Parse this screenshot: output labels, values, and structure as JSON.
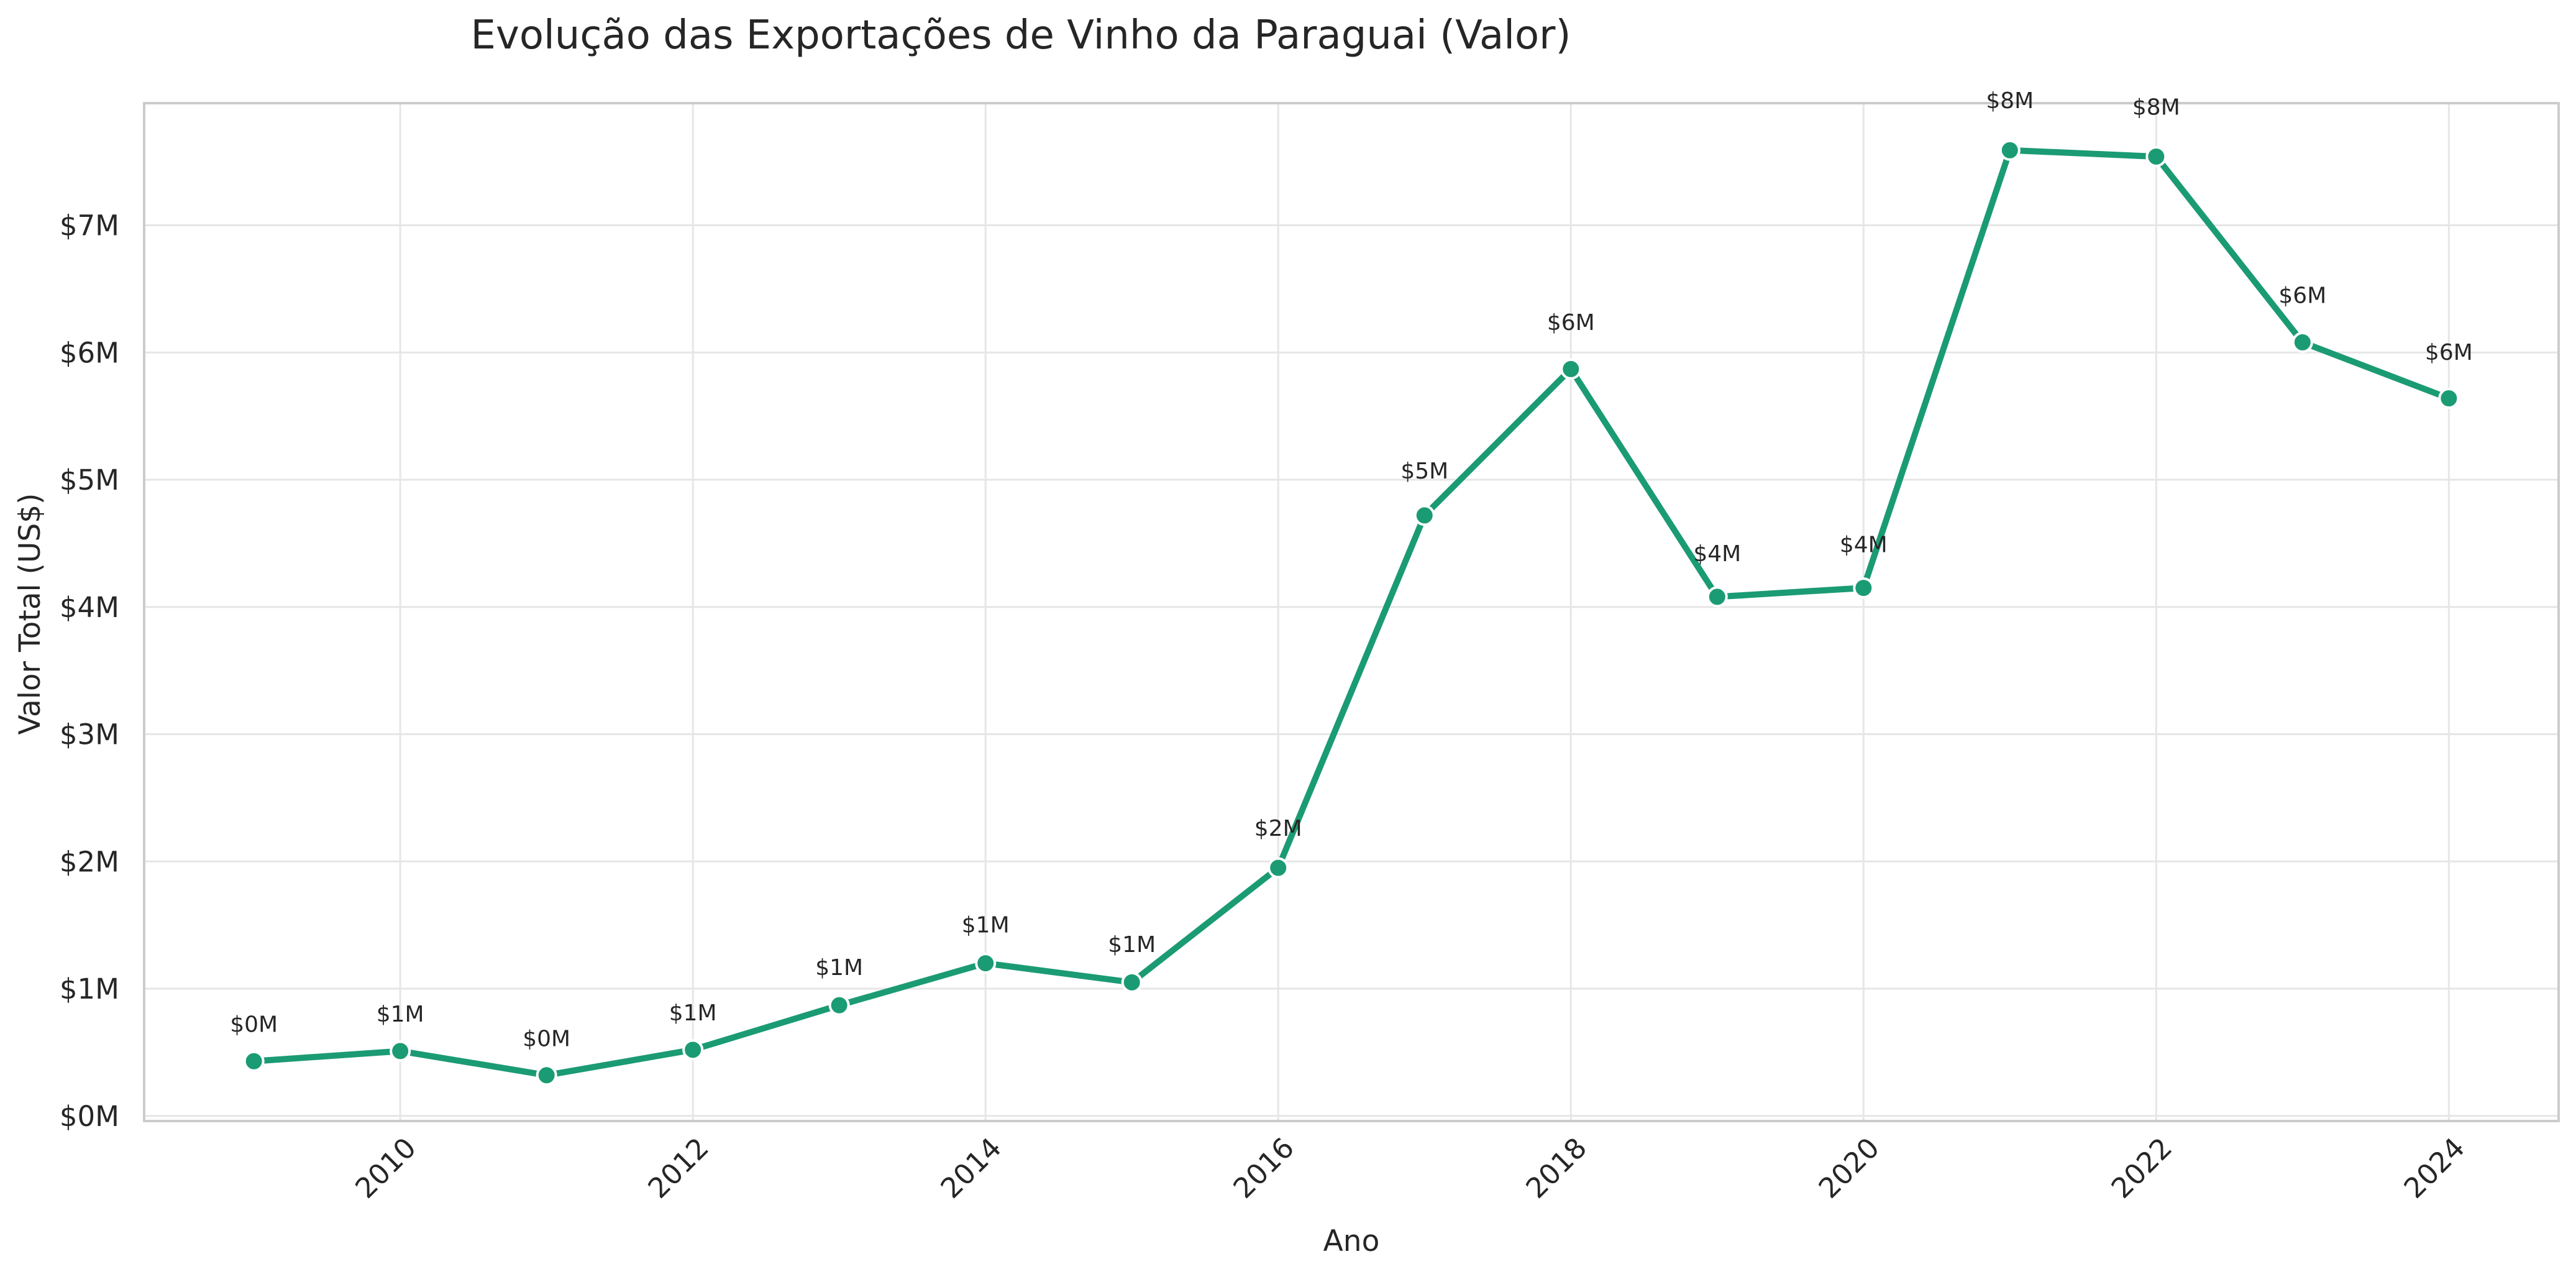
{
  "chart_data": {
    "type": "line",
    "title": "Evolução das Exportações de Vinho da Paraguai (Valor)",
    "xlabel": "Ano",
    "ylabel": "Valor Total (US$)",
    "x": [
      2009,
      2010,
      2011,
      2012,
      2013,
      2014,
      2015,
      2016,
      2017,
      2018,
      2019,
      2020,
      2021,
      2022,
      2023,
      2024
    ],
    "series": [
      {
        "values": [
          430000,
          510000,
          320000,
          520000,
          870000,
          1200000,
          1050000,
          1950000,
          4720000,
          5870000,
          4080000,
          4150000,
          7590000,
          7540000,
          6080000,
          5640000
        ],
        "labels": [
          "$0M",
          "$1M",
          "$0M",
          "$1M",
          "$1M",
          "$1M",
          "$1M",
          "$2M",
          "$5M",
          "$6M",
          "$4M",
          "$4M",
          "$8M",
          "$8M",
          "$6M",
          "$6M"
        ],
        "color": "#1b9b73"
      }
    ],
    "xticks": [
      2010,
      2012,
      2014,
      2016,
      2018,
      2020,
      2022,
      2024
    ],
    "yticks": [
      0,
      1000000,
      2000000,
      3000000,
      4000000,
      5000000,
      6000000,
      7000000
    ],
    "ytick_labels": [
      "$0M",
      "$1M",
      "$2M",
      "$3M",
      "$4M",
      "$5M",
      "$6M",
      "$7M"
    ],
    "xlim": [
      2008.25,
      2024.75
    ],
    "ylim": [
      -40000,
      7960000
    ],
    "grid": true,
    "legend": "none"
  }
}
